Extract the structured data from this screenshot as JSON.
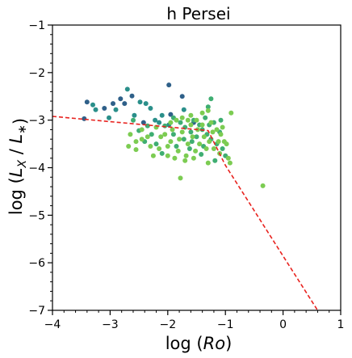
{
  "chart_data": {
    "type": "scatter",
    "title": "h Persei",
    "xlabel": "log (Ro)",
    "ylabel": "log (L_X / L_*)",
    "xlim": [
      -4,
      1
    ],
    "ylim": [
      -7,
      -1
    ],
    "xticks": [
      -4,
      -3,
      -2,
      -1,
      0,
      1
    ],
    "yticks": [
      -7,
      -6,
      -5,
      -4,
      -3,
      -2,
      -1
    ],
    "xtick_labels": [
      "−4",
      "−3",
      "−2",
      "−1",
      "0",
      "1"
    ],
    "ytick_labels": [
      "−7",
      "−6",
      "−5",
      "−4",
      "−3",
      "−2",
      "−1"
    ],
    "grid": false,
    "legend": "none",
    "colors": {
      "dark": "#2f6089",
      "teal": "#2a8f8a",
      "mid": "#3fae72",
      "light": "#7ccc52",
      "fit_line": "#e8231f"
    },
    "fit_line": {
      "style": "dashed",
      "x": [
        -4.0,
        -1.3,
        -1.0,
        0.6
      ],
      "y": [
        -2.92,
        -3.22,
        -3.95,
        -7.0
      ]
    },
    "series": [
      {
        "tone": "dark",
        "points": [
          [
            -3.4,
            -2.62
          ],
          [
            -3.1,
            -2.75
          ],
          [
            -2.95,
            -2.65
          ],
          [
            -2.82,
            -2.55
          ],
          [
            -2.75,
            -2.65
          ],
          [
            -2.62,
            -2.49
          ],
          [
            -1.98,
            -2.26
          ],
          [
            -1.75,
            -2.5
          ],
          [
            -1.95,
            -2.88
          ],
          [
            -2.42,
            -3.05
          ],
          [
            -3.45,
            -2.97
          ],
          [
            -1.55,
            -3.05
          ]
        ]
      },
      {
        "tone": "teal",
        "points": [
          [
            -3.25,
            -2.78
          ],
          [
            -3.02,
            -2.95
          ],
          [
            -2.9,
            -2.78
          ],
          [
            -2.7,
            -2.35
          ],
          [
            -2.48,
            -2.62
          ],
          [
            -2.38,
            -2.65
          ],
          [
            -2.3,
            -2.75
          ],
          [
            -2.58,
            -2.9
          ],
          [
            -2.22,
            -3.0
          ],
          [
            -2.15,
            -3.05
          ],
          [
            -1.72,
            -2.78
          ],
          [
            -1.98,
            -3.1
          ],
          [
            -3.3,
            -2.68
          ],
          [
            -2.1,
            -2.9
          ]
        ]
      },
      {
        "tone": "mid",
        "points": [
          [
            -2.6,
            -3.0
          ],
          [
            -2.35,
            -3.12
          ],
          [
            -2.4,
            -3.45
          ],
          [
            -2.2,
            -3.5
          ],
          [
            -2.05,
            -3.12
          ],
          [
            -1.9,
            -3.3
          ],
          [
            -1.85,
            -3.55
          ],
          [
            -1.78,
            -3.05
          ],
          [
            -1.7,
            -3.15
          ],
          [
            -1.6,
            -3.25
          ],
          [
            -1.55,
            -3.0
          ],
          [
            -1.5,
            -3.35
          ],
          [
            -1.45,
            -3.1
          ],
          [
            -1.4,
            -3.2
          ],
          [
            -1.35,
            -2.95
          ],
          [
            -1.32,
            -3.3
          ],
          [
            -1.28,
            -3.1
          ],
          [
            -1.25,
            -3.4
          ],
          [
            -1.2,
            -3.05
          ],
          [
            -1.15,
            -3.5
          ],
          [
            -1.1,
            -3.25
          ],
          [
            -1.05,
            -3.6
          ],
          [
            -1.0,
            -3.75
          ],
          [
            -1.3,
            -2.72
          ],
          [
            -1.25,
            -2.55
          ],
          [
            -2.5,
            -3.22
          ],
          [
            -2.1,
            -3.7
          ],
          [
            -1.62,
            -3.6
          ],
          [
            -1.9,
            -2.95
          ],
          [
            -1.42,
            -3.72
          ],
          [
            -1.18,
            -3.85
          ],
          [
            -1.08,
            -3.0
          ],
          [
            -2.28,
            -3.3
          ],
          [
            -1.72,
            -3.4
          ],
          [
            -1.58,
            -3.45
          ],
          [
            -1.38,
            -3.55
          ]
        ]
      },
      {
        "tone": "light",
        "points": [
          [
            -2.65,
            -3.3
          ],
          [
            -2.68,
            -3.55
          ],
          [
            -2.55,
            -3.62
          ],
          [
            -2.45,
            -3.2
          ],
          [
            -2.3,
            -3.55
          ],
          [
            -2.25,
            -3.75
          ],
          [
            -2.15,
            -3.6
          ],
          [
            -2.12,
            -3.35
          ],
          [
            -2.0,
            -3.75
          ],
          [
            -1.95,
            -3.45
          ],
          [
            -1.92,
            -3.2
          ],
          [
            -1.88,
            -3.8
          ],
          [
            -1.82,
            -3.65
          ],
          [
            -1.8,
            -3.4
          ],
          [
            -1.75,
            -3.25
          ],
          [
            -1.68,
            -3.75
          ],
          [
            -1.65,
            -3.5
          ],
          [
            -1.6,
            -3.1
          ],
          [
            -1.57,
            -3.35
          ],
          [
            -1.52,
            -3.65
          ],
          [
            -1.48,
            -3.2
          ],
          [
            -1.45,
            -3.5
          ],
          [
            -1.4,
            -3.1
          ],
          [
            -1.37,
            -3.35
          ],
          [
            -1.33,
            -3.6
          ],
          [
            -1.28,
            -3.45
          ],
          [
            -1.22,
            -3.25
          ],
          [
            -1.2,
            -3.6
          ],
          [
            -1.15,
            -3.2
          ],
          [
            -1.12,
            -3.45
          ],
          [
            -1.08,
            -3.3
          ],
          [
            -1.05,
            -3.15
          ],
          [
            -1.02,
            -3.45
          ],
          [
            -0.98,
            -3.5
          ],
          [
            -0.95,
            -3.8
          ],
          [
            -0.92,
            -3.9
          ],
          [
            -0.9,
            -2.85
          ],
          [
            -1.3,
            -2.8
          ],
          [
            -1.4,
            -2.85
          ],
          [
            -1.6,
            -2.9
          ],
          [
            -1.75,
            -2.95
          ],
          [
            -1.85,
            -3.0
          ],
          [
            -1.95,
            -3.05
          ],
          [
            -2.05,
            -3.3
          ],
          [
            -2.2,
            -3.15
          ],
          [
            -2.35,
            -3.35
          ],
          [
            -2.45,
            -3.4
          ],
          [
            -1.78,
            -4.22
          ],
          [
            -0.35,
            -4.38
          ],
          [
            -1.55,
            -3.8
          ],
          [
            -1.3,
            -3.9
          ],
          [
            -1.1,
            -3.7
          ],
          [
            -1.5,
            -3.0
          ],
          [
            -1.25,
            -3.05
          ],
          [
            -1.65,
            -3.0
          ],
          [
            -2.55,
            -3.45
          ],
          [
            -2.0,
            -3.55
          ],
          [
            -1.7,
            -3.85
          ]
        ]
      }
    ]
  }
}
